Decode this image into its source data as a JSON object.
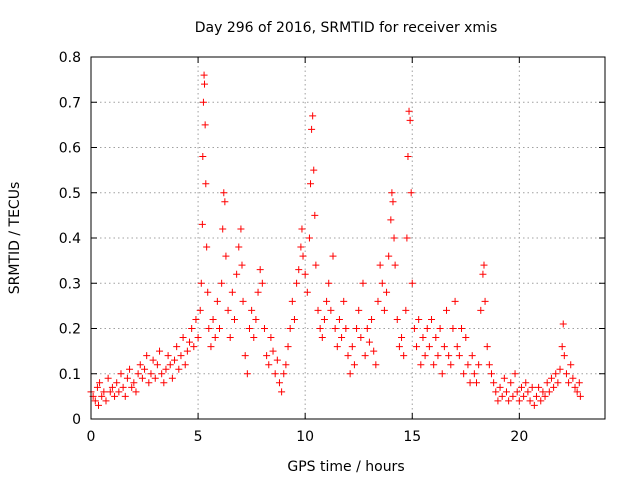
{
  "chart_data": {
    "type": "scatter",
    "title": "Day 296 of 2016, SRMTID for receiver xmis",
    "xlabel": "GPS time / hours",
    "ylabel": "SRMTID / TECUs",
    "xlim": [
      0,
      24
    ],
    "ylim": [
      0,
      0.8
    ],
    "x_ticks": [
      0,
      5,
      10,
      15,
      20
    ],
    "x_tick_labels": [
      "0",
      "5",
      "10",
      "15",
      "20"
    ],
    "y_ticks": [
      0,
      0.1,
      0.2,
      0.3,
      0.4,
      0.5,
      0.6,
      0.7,
      0.8
    ],
    "y_tick_labels": [
      "0",
      "0.1",
      "0.2",
      "0.3",
      "0.4",
      "0.5",
      "0.6",
      "0.7",
      "0.8"
    ],
    "grid": true,
    "marker": "+",
    "color": "#ff0000",
    "series": [
      {
        "name": "SRMTID",
        "points": [
          [
            0.0,
            0.06
          ],
          [
            0.1,
            0.05
          ],
          [
            0.2,
            0.04
          ],
          [
            0.3,
            0.07
          ],
          [
            0.35,
            0.03
          ],
          [
            0.4,
            0.08
          ],
          [
            0.5,
            0.05
          ],
          [
            0.6,
            0.06
          ],
          [
            0.7,
            0.04
          ],
          [
            0.8,
            0.09
          ],
          [
            0.9,
            0.06
          ],
          [
            1.0,
            0.07
          ],
          [
            1.1,
            0.05
          ],
          [
            1.2,
            0.08
          ],
          [
            1.3,
            0.06
          ],
          [
            1.4,
            0.1
          ],
          [
            1.5,
            0.07
          ],
          [
            1.6,
            0.05
          ],
          [
            1.7,
            0.09
          ],
          [
            1.8,
            0.11
          ],
          [
            1.9,
            0.07
          ],
          [
            2.0,
            0.08
          ],
          [
            2.1,
            0.06
          ],
          [
            2.2,
            0.1
          ],
          [
            2.3,
            0.12
          ],
          [
            2.4,
            0.09
          ],
          [
            2.5,
            0.11
          ],
          [
            2.6,
            0.14
          ],
          [
            2.7,
            0.08
          ],
          [
            2.8,
            0.1
          ],
          [
            2.9,
            0.13
          ],
          [
            3.0,
            0.09
          ],
          [
            3.1,
            0.12
          ],
          [
            3.2,
            0.15
          ],
          [
            3.3,
            0.1
          ],
          [
            3.4,
            0.08
          ],
          [
            3.5,
            0.11
          ],
          [
            3.6,
            0.14
          ],
          [
            3.7,
            0.12
          ],
          [
            3.8,
            0.09
          ],
          [
            3.9,
            0.13
          ],
          [
            4.0,
            0.16
          ],
          [
            4.1,
            0.11
          ],
          [
            4.2,
            0.14
          ],
          [
            4.3,
            0.18
          ],
          [
            4.4,
            0.12
          ],
          [
            4.5,
            0.15
          ],
          [
            4.6,
            0.17
          ],
          [
            4.7,
            0.2
          ],
          [
            4.8,
            0.16
          ],
          [
            4.9,
            0.22
          ],
          [
            5.0,
            0.18
          ],
          [
            5.1,
            0.24
          ],
          [
            5.15,
            0.3
          ],
          [
            5.2,
            0.43
          ],
          [
            5.22,
            0.58
          ],
          [
            5.25,
            0.7
          ],
          [
            5.28,
            0.76
          ],
          [
            5.3,
            0.74
          ],
          [
            5.33,
            0.65
          ],
          [
            5.36,
            0.52
          ],
          [
            5.4,
            0.38
          ],
          [
            5.45,
            0.28
          ],
          [
            5.5,
            0.2
          ],
          [
            5.6,
            0.16
          ],
          [
            5.7,
            0.22
          ],
          [
            5.8,
            0.18
          ],
          [
            5.9,
            0.26
          ],
          [
            6.0,
            0.2
          ],
          [
            6.1,
            0.3
          ],
          [
            6.15,
            0.42
          ],
          [
            6.2,
            0.5
          ],
          [
            6.25,
            0.48
          ],
          [
            6.3,
            0.36
          ],
          [
            6.4,
            0.24
          ],
          [
            6.5,
            0.18
          ],
          [
            6.6,
            0.28
          ],
          [
            6.7,
            0.22
          ],
          [
            6.8,
            0.32
          ],
          [
            6.9,
            0.38
          ],
          [
            7.0,
            0.42
          ],
          [
            7.05,
            0.34
          ],
          [
            7.1,
            0.26
          ],
          [
            7.2,
            0.14
          ],
          [
            7.3,
            0.1
          ],
          [
            7.4,
            0.2
          ],
          [
            7.5,
            0.24
          ],
          [
            7.6,
            0.18
          ],
          [
            7.7,
            0.22
          ],
          [
            7.8,
            0.28
          ],
          [
            7.9,
            0.33
          ],
          [
            8.0,
            0.3
          ],
          [
            8.1,
            0.2
          ],
          [
            8.2,
            0.14
          ],
          [
            8.3,
            0.12
          ],
          [
            8.4,
            0.18
          ],
          [
            8.5,
            0.15
          ],
          [
            8.6,
            0.1
          ],
          [
            8.7,
            0.13
          ],
          [
            8.8,
            0.08
          ],
          [
            8.9,
            0.06
          ],
          [
            9.0,
            0.1
          ],
          [
            9.1,
            0.12
          ],
          [
            9.2,
            0.16
          ],
          [
            9.3,
            0.2
          ],
          [
            9.4,
            0.26
          ],
          [
            9.5,
            0.22
          ],
          [
            9.6,
            0.3
          ],
          [
            9.7,
            0.33
          ],
          [
            9.8,
            0.38
          ],
          [
            9.85,
            0.42
          ],
          [
            9.9,
            0.36
          ],
          [
            10.0,
            0.32
          ],
          [
            10.1,
            0.28
          ],
          [
            10.2,
            0.4
          ],
          [
            10.25,
            0.52
          ],
          [
            10.3,
            0.64
          ],
          [
            10.35,
            0.67
          ],
          [
            10.4,
            0.55
          ],
          [
            10.45,
            0.45
          ],
          [
            10.5,
            0.34
          ],
          [
            10.6,
            0.24
          ],
          [
            10.7,
            0.2
          ],
          [
            10.8,
            0.18
          ],
          [
            10.9,
            0.22
          ],
          [
            11.0,
            0.26
          ],
          [
            11.1,
            0.3
          ],
          [
            11.2,
            0.24
          ],
          [
            11.3,
            0.36
          ],
          [
            11.4,
            0.2
          ],
          [
            11.5,
            0.16
          ],
          [
            11.6,
            0.22
          ],
          [
            11.7,
            0.18
          ],
          [
            11.8,
            0.26
          ],
          [
            11.9,
            0.2
          ],
          [
            12.0,
            0.14
          ],
          [
            12.1,
            0.1
          ],
          [
            12.2,
            0.16
          ],
          [
            12.3,
            0.12
          ],
          [
            12.4,
            0.2
          ],
          [
            12.5,
            0.24
          ],
          [
            12.6,
            0.18
          ],
          [
            12.7,
            0.3
          ],
          [
            12.8,
            0.14
          ],
          [
            12.9,
            0.2
          ],
          [
            13.0,
            0.17
          ],
          [
            13.1,
            0.22
          ],
          [
            13.2,
            0.15
          ],
          [
            13.3,
            0.12
          ],
          [
            13.4,
            0.26
          ],
          [
            13.5,
            0.34
          ],
          [
            13.6,
            0.3
          ],
          [
            13.7,
            0.24
          ],
          [
            13.8,
            0.28
          ],
          [
            13.9,
            0.36
          ],
          [
            14.0,
            0.44
          ],
          [
            14.05,
            0.5
          ],
          [
            14.1,
            0.48
          ],
          [
            14.15,
            0.4
          ],
          [
            14.2,
            0.34
          ],
          [
            14.3,
            0.22
          ],
          [
            14.4,
            0.16
          ],
          [
            14.5,
            0.18
          ],
          [
            14.6,
            0.14
          ],
          [
            14.7,
            0.24
          ],
          [
            14.75,
            0.4
          ],
          [
            14.8,
            0.58
          ],
          [
            14.85,
            0.68
          ],
          [
            14.9,
            0.66
          ],
          [
            14.95,
            0.5
          ],
          [
            15.0,
            0.3
          ],
          [
            15.1,
            0.2
          ],
          [
            15.2,
            0.16
          ],
          [
            15.3,
            0.22
          ],
          [
            15.4,
            0.12
          ],
          [
            15.5,
            0.18
          ],
          [
            15.6,
            0.14
          ],
          [
            15.7,
            0.2
          ],
          [
            15.8,
            0.16
          ],
          [
            15.9,
            0.22
          ],
          [
            16.0,
            0.12
          ],
          [
            16.1,
            0.18
          ],
          [
            16.2,
            0.14
          ],
          [
            16.3,
            0.2
          ],
          [
            16.4,
            0.1
          ],
          [
            16.5,
            0.16
          ],
          [
            16.6,
            0.24
          ],
          [
            16.7,
            0.14
          ],
          [
            16.8,
            0.12
          ],
          [
            16.9,
            0.2
          ],
          [
            17.0,
            0.26
          ],
          [
            17.1,
            0.16
          ],
          [
            17.2,
            0.14
          ],
          [
            17.3,
            0.2
          ],
          [
            17.4,
            0.1
          ],
          [
            17.5,
            0.18
          ],
          [
            17.6,
            0.12
          ],
          [
            17.7,
            0.08
          ],
          [
            17.8,
            0.14
          ],
          [
            17.9,
            0.1
          ],
          [
            18.0,
            0.08
          ],
          [
            18.1,
            0.12
          ],
          [
            18.2,
            0.24
          ],
          [
            18.3,
            0.32
          ],
          [
            18.35,
            0.34
          ],
          [
            18.4,
            0.26
          ],
          [
            18.5,
            0.16
          ],
          [
            18.6,
            0.12
          ],
          [
            18.7,
            0.1
          ],
          [
            18.8,
            0.08
          ],
          [
            18.9,
            0.06
          ],
          [
            19.0,
            0.04
          ],
          [
            19.1,
            0.07
          ],
          [
            19.2,
            0.05
          ],
          [
            19.3,
            0.09
          ],
          [
            19.4,
            0.06
          ],
          [
            19.5,
            0.04
          ],
          [
            19.6,
            0.08
          ],
          [
            19.7,
            0.05
          ],
          [
            19.8,
            0.1
          ],
          [
            19.9,
            0.06
          ],
          [
            20.0,
            0.04
          ],
          [
            20.1,
            0.07
          ],
          [
            20.2,
            0.05
          ],
          [
            20.3,
            0.08
          ],
          [
            20.4,
            0.06
          ],
          [
            20.5,
            0.04
          ],
          [
            20.6,
            0.07
          ],
          [
            20.7,
            0.03
          ],
          [
            20.8,
            0.05
          ],
          [
            20.9,
            0.07
          ],
          [
            21.0,
            0.04
          ],
          [
            21.1,
            0.06
          ],
          [
            21.2,
            0.05
          ],
          [
            21.3,
            0.08
          ],
          [
            21.4,
            0.06
          ],
          [
            21.5,
            0.09
          ],
          [
            21.6,
            0.07
          ],
          [
            21.7,
            0.1
          ],
          [
            21.8,
            0.08
          ],
          [
            21.9,
            0.11
          ],
          [
            22.0,
            0.16
          ],
          [
            22.05,
            0.21
          ],
          [
            22.1,
            0.14
          ],
          [
            22.2,
            0.1
          ],
          [
            22.3,
            0.08
          ],
          [
            22.4,
            0.12
          ],
          [
            22.5,
            0.09
          ],
          [
            22.6,
            0.07
          ],
          [
            22.7,
            0.06
          ],
          [
            22.8,
            0.08
          ],
          [
            22.85,
            0.05
          ]
        ]
      }
    ]
  }
}
